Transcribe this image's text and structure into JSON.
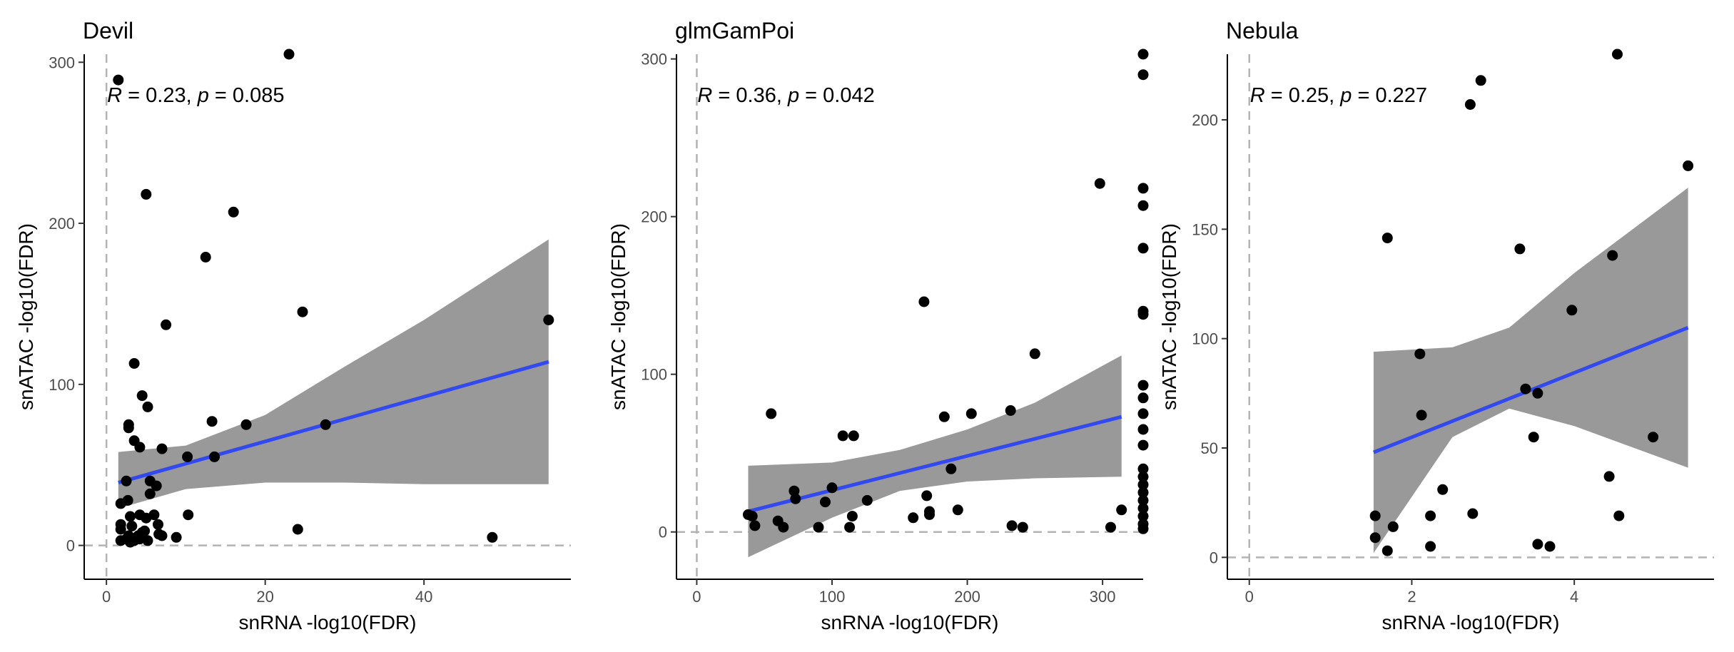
{
  "chart_data": [
    {
      "type": "scatter",
      "title": "Devil",
      "xlabel": "snRNA -log10(FDR)",
      "ylabel": "snATAC -log10(FDR)",
      "xlim": [
        -2.8,
        58.5
      ],
      "ylim": [
        -21,
        305
      ],
      "xticks": [
        0,
        20,
        40
      ],
      "yticks": [
        0,
        100,
        200,
        300
      ],
      "annotation": {
        "r_label": "R",
        "r_value": " = 0.23, ",
        "p_label": "p",
        "p_value": " = 0.085"
      },
      "grid": false,
      "points": [
        [
          1.5,
          289
        ],
        [
          23,
          305
        ],
        [
          5,
          218
        ],
        [
          16,
          207
        ],
        [
          12.5,
          179
        ],
        [
          7.5,
          137
        ],
        [
          24.7,
          145
        ],
        [
          55.7,
          140
        ],
        [
          3.5,
          113
        ],
        [
          4.5,
          93
        ],
        [
          5.2,
          86
        ],
        [
          2.8,
          75
        ],
        [
          2.8,
          73
        ],
        [
          13.3,
          77
        ],
        [
          17.6,
          75
        ],
        [
          27.6,
          75
        ],
        [
          3.5,
          65
        ],
        [
          4.2,
          61
        ],
        [
          7,
          60
        ],
        [
          10.2,
          55
        ],
        [
          13.6,
          55
        ],
        [
          2.5,
          40
        ],
        [
          5.5,
          40
        ],
        [
          6.3,
          37
        ],
        [
          5.5,
          32
        ],
        [
          2.7,
          28
        ],
        [
          1.8,
          26
        ],
        [
          10.3,
          19
        ],
        [
          3,
          18
        ],
        [
          4.2,
          19
        ],
        [
          5,
          17
        ],
        [
          6,
          19
        ],
        [
          1.8,
          13
        ],
        [
          1.8,
          10
        ],
        [
          3.2,
          12
        ],
        [
          6.5,
          13
        ],
        [
          4.8,
          9
        ],
        [
          24.1,
          10
        ],
        [
          2.8,
          6
        ],
        [
          3.8,
          5
        ],
        [
          4.5,
          8
        ],
        [
          7,
          6
        ],
        [
          8.8,
          5
        ],
        [
          48.6,
          5
        ],
        [
          1.8,
          3
        ],
        [
          2.5,
          4
        ],
        [
          3,
          2
        ],
        [
          3.5,
          3
        ],
        [
          4.2,
          4
        ],
        [
          5.2,
          3
        ],
        [
          4,
          6
        ],
        [
          6.6,
          7
        ]
      ],
      "fit": {
        "x": [
          1.5,
          55.7
        ],
        "y": [
          39,
          114
        ]
      },
      "ribbon": {
        "x": [
          1.5,
          10,
          20,
          30,
          40,
          55.7
        ],
        "upper": [
          58,
          62,
          81,
          111,
          140,
          190
        ],
        "lower": [
          23,
          35,
          39,
          39,
          38,
          38
        ]
      },
      "vline_x": 0,
      "hline_y": 0,
      "colors": {
        "points": "#000000",
        "fit": "#3249f0",
        "ribbon": "#999999",
        "refline": "#b3b3b3"
      }
    },
    {
      "type": "scatter",
      "title": "glmGamPoi",
      "xlabel": "snRNA -log10(FDR)",
      "ylabel": "snATAC -log10(FDR)",
      "xlim": [
        -15,
        330
      ],
      "ylim": [
        -30,
        303
      ],
      "xticks": [
        0,
        100,
        200,
        300
      ],
      "yticks": [
        0,
        100,
        200,
        300
      ],
      "annotation": {
        "r_label": "R",
        "r_value": " = 0.36, ",
        "p_label": "p",
        "p_value": " = 0.042"
      },
      "grid": false,
      "points": [
        [
          298,
          221
        ],
        [
          168,
          146
        ],
        [
          250,
          113
        ],
        [
          55,
          75
        ],
        [
          183,
          73
        ],
        [
          203,
          75
        ],
        [
          232,
          77
        ],
        [
          108,
          61
        ],
        [
          116,
          61
        ],
        [
          188,
          40
        ],
        [
          72,
          26
        ],
        [
          100,
          28
        ],
        [
          73,
          21
        ],
        [
          95,
          19
        ],
        [
          126,
          20
        ],
        [
          170,
          23
        ],
        [
          193,
          14
        ],
        [
          172,
          13
        ],
        [
          172,
          11
        ],
        [
          160,
          9
        ],
        [
          115,
          10
        ],
        [
          38,
          11
        ],
        [
          41,
          10
        ],
        [
          43,
          4
        ],
        [
          60,
          7
        ],
        [
          64,
          3
        ],
        [
          90,
          3
        ],
        [
          113,
          3
        ],
        [
          233,
          4
        ],
        [
          241,
          3
        ],
        [
          306,
          3
        ],
        [
          314,
          14
        ],
        [
          330,
          303
        ],
        [
          330,
          290
        ],
        [
          330,
          218
        ],
        [
          330,
          207
        ],
        [
          330,
          180
        ],
        [
          330,
          140
        ],
        [
          330,
          138
        ],
        [
          330,
          93
        ],
        [
          330,
          85
        ],
        [
          330,
          75
        ],
        [
          330,
          65
        ],
        [
          330,
          55
        ],
        [
          330,
          40
        ],
        [
          330,
          35
        ],
        [
          330,
          30
        ],
        [
          330,
          25
        ],
        [
          330,
          20
        ],
        [
          330,
          15
        ],
        [
          330,
          10
        ],
        [
          330,
          5
        ],
        [
          330,
          2
        ]
      ],
      "fit": {
        "x": [
          38,
          314
        ],
        "y": [
          13,
          73
        ]
      },
      "ribbon": {
        "x": [
          38,
          100,
          150,
          200,
          250,
          314
        ],
        "upper": [
          42,
          44,
          52,
          65,
          82,
          112
        ],
        "lower": [
          -16,
          9,
          26,
          32,
          34,
          35
        ]
      },
      "vline_x": 0,
      "hline_y": 0,
      "colors": {
        "points": "#000000",
        "fit": "#3249f0",
        "ribbon": "#999999",
        "refline": "#b3b3b3"
      }
    },
    {
      "type": "scatter",
      "title": "Nebula",
      "xlabel": "snRNA -log10(FDR)",
      "ylabel": "snATAC -log10(FDR)",
      "xlim": [
        -0.27,
        5.72
      ],
      "ylim": [
        -10,
        230
      ],
      "xticks": [
        0,
        2,
        4
      ],
      "yticks": [
        0,
        50,
        100,
        150,
        200
      ],
      "annotation": {
        "r_label": "R",
        "r_value": " = 0.25, ",
        "p_label": "p",
        "p_value": " = 0.227"
      },
      "grid": false,
      "points": [
        [
          4.53,
          230
        ],
        [
          2.85,
          218
        ],
        [
          2.72,
          207
        ],
        [
          5.4,
          179
        ],
        [
          1.7,
          146
        ],
        [
          3.33,
          141
        ],
        [
          4.47,
          138
        ],
        [
          3.97,
          113
        ],
        [
          2.1,
          93
        ],
        [
          3.4,
          77
        ],
        [
          3.55,
          75
        ],
        [
          2.12,
          65
        ],
        [
          3.5,
          55
        ],
        [
          4.97,
          55
        ],
        [
          4.43,
          37
        ],
        [
          2.38,
          31
        ],
        [
          1.55,
          19
        ],
        [
          2.23,
          19
        ],
        [
          2.75,
          20
        ],
        [
          4.55,
          19
        ],
        [
          1.77,
          14
        ],
        [
          1.55,
          9
        ],
        [
          1.7,
          3
        ],
        [
          2.23,
          5
        ],
        [
          3.55,
          6
        ],
        [
          3.7,
          5
        ]
      ],
      "fit": {
        "x": [
          1.53,
          5.4
        ],
        "y": [
          48,
          105
        ]
      },
      "ribbon": {
        "x": [
          1.53,
          2.5,
          3.2,
          4,
          5.4
        ],
        "upper": [
          94,
          96,
          105,
          130,
          169
        ],
        "lower": [
          2,
          55,
          68,
          60,
          41
        ]
      },
      "vline_x": 0,
      "hline_y": 0,
      "colors": {
        "points": "#000000",
        "fit": "#3249f0",
        "ribbon": "#999999",
        "refline": "#b3b3b3"
      }
    }
  ]
}
